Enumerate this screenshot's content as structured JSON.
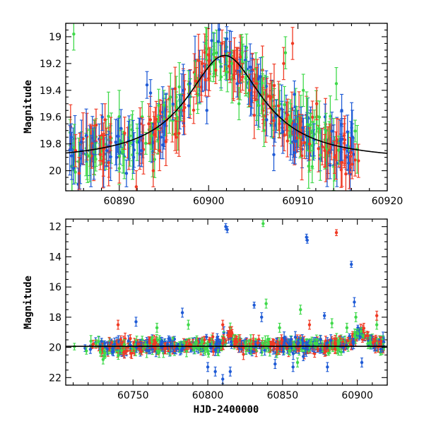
{
  "colors": {
    "blue": "#1f5bd6",
    "green": "#3fd94a",
    "red": "#f03a24",
    "curve": "#000000"
  },
  "chart_data": [
    {
      "type": "scatter",
      "title": "",
      "xlabel": "",
      "ylabel": "Magnitude",
      "xlim": [
        60884,
        60920
      ],
      "ylim": [
        20.15,
        18.9
      ],
      "y_inverted": true,
      "x_ticks": [
        60890,
        60900,
        60910,
        60920
      ],
      "y_ticks": [
        19,
        19.2,
        19.4,
        19.6,
        19.8,
        20
      ],
      "x_tick_labels": [
        "60890",
        "60900",
        "60910",
        "60920"
      ],
      "y_tick_labels": [
        "19",
        "19.2",
        "19.4",
        "19.6",
        "19.8",
        "20"
      ],
      "model_curve": {
        "peak_x": 60901.8,
        "peak_mag": 19.14,
        "baseline_mag": 19.93,
        "width_days": 5.2
      },
      "series": [
        {
          "color": "blue",
          "points": [
            [
              60884.6,
              19.75,
              0.1
            ],
            [
              60884.9,
              19.98,
              0.12
            ],
            [
              60885.4,
              20.1,
              0.12
            ],
            [
              60885.8,
              19.85,
              0.1
            ],
            [
              60887.3,
              19.78,
              0.1
            ],
            [
              60888.1,
              19.6,
              0.1
            ],
            [
              60888.6,
              19.85,
              0.12
            ],
            [
              60889.7,
              19.9,
              0.1
            ],
            [
              60890.8,
              20.02,
              0.1
            ],
            [
              60891.6,
              19.9,
              0.12
            ],
            [
              60892.5,
              19.85,
              0.12
            ],
            [
              60893.1,
              19.36,
              0.1
            ],
            [
              60893.5,
              19.42,
              0.1
            ],
            [
              60895.2,
              19.55,
              0.12
            ],
            [
              60897.9,
              19.35,
              0.1
            ],
            [
              60899.8,
              19.55,
              0.1
            ],
            [
              60901.9,
              19.11,
              0.1
            ],
            [
              60903.2,
              19.35,
              0.1
            ],
            [
              60904.8,
              19.48,
              0.1
            ],
            [
              60906.5,
              19.62,
              0.12
            ],
            [
              60907.3,
              19.88,
              0.12
            ],
            [
              60909.6,
              19.43,
              0.1
            ],
            [
              60911.8,
              19.77,
              0.12
            ],
            [
              60913.6,
              19.96,
              0.1
            ],
            [
              60914.9,
              19.55,
              0.12
            ],
            [
              60916.1,
              19.75,
              0.1
            ]
          ]
        },
        {
          "color": "green",
          "points": [
            [
              60884.9,
              18.98,
              0.12
            ],
            [
              60893.6,
              19.74,
              0.1
            ],
            [
              60898.5,
              19.28,
              0.1
            ],
            [
              60899.7,
              19.05,
              0.12
            ],
            [
              60900.6,
              19.2,
              0.1
            ],
            [
              60901.4,
              19.3,
              0.1
            ],
            [
              60902.6,
              19.2,
              0.1
            ],
            [
              60903.4,
              19.5,
              0.12
            ],
            [
              60904.5,
              19.35,
              0.1
            ],
            [
              60905.3,
              19.24,
              0.12
            ],
            [
              60906.2,
              19.7,
              0.12
            ],
            [
              60907.1,
              19.45,
              0.12
            ],
            [
              60908.6,
              19.12,
              0.12
            ],
            [
              60909.2,
              19.62,
              0.12
            ],
            [
              60910.6,
              19.4,
              0.12
            ],
            [
              60911.6,
              19.97,
              0.12
            ],
            [
              60912.4,
              19.6,
              0.12
            ],
            [
              60914.3,
              19.35,
              0.12
            ]
          ]
        },
        {
          "color": "red",
          "points": [
            [
              60885.1,
              19.85,
              0.12
            ],
            [
              60885.5,
              20.02,
              0.12
            ],
            [
              60887.4,
              19.66,
              0.12
            ],
            [
              60888.4,
              19.62,
              0.12
            ],
            [
              60889.0,
              19.75,
              0.1
            ],
            [
              60890.6,
              19.72,
              0.12
            ],
            [
              60891.9,
              20.12,
              0.12
            ],
            [
              60893.3,
              19.65,
              0.15
            ],
            [
              60893.8,
              20.0,
              0.12
            ],
            [
              60894.5,
              19.85,
              0.15
            ],
            [
              60895.3,
              19.62,
              0.15
            ],
            [
              60896.4,
              19.75,
              0.12
            ],
            [
              60897.2,
              19.55,
              0.12
            ],
            [
              60898.6,
              19.33,
              0.1
            ],
            [
              60899.3,
              19.2,
              0.1
            ],
            [
              60900.1,
              19.18,
              0.1
            ],
            [
              60900.8,
              19.25,
              0.1
            ],
            [
              60901.5,
              19.05,
              0.1
            ],
            [
              60902.3,
              19.22,
              0.1
            ],
            [
              60903.1,
              19.18,
              0.1
            ],
            [
              60903.8,
              19.3,
              0.1
            ],
            [
              60904.6,
              19.4,
              0.12
            ],
            [
              60905.4,
              19.35,
              0.12
            ],
            [
              60906.1,
              19.5,
              0.12
            ],
            [
              60907.0,
              19.45,
              0.12
            ],
            [
              60908.4,
              19.2,
              0.12
            ],
            [
              60909.4,
              19.05,
              0.12
            ],
            [
              60910.2,
              19.72,
              0.12
            ],
            [
              60911.3,
              19.8,
              0.12
            ],
            [
              60912.1,
              19.5,
              0.12
            ],
            [
              60913.0,
              19.85,
              0.12
            ],
            [
              60914.1,
              19.9,
              0.12
            ],
            [
              60915.2,
              19.84,
              0.12
            ],
            [
              60916.4,
              19.92,
              0.12
            ]
          ]
        }
      ]
    },
    {
      "type": "scatter",
      "title": "",
      "xlabel": "HJD-2400000",
      "ylabel": "Magnitude",
      "xlim": [
        60705,
        60920
      ],
      "ylim": [
        22.5,
        11.5
      ],
      "y_inverted": true,
      "x_ticks": [
        60750,
        60800,
        60850,
        60900
      ],
      "y_ticks": [
        12,
        14,
        16,
        18,
        20,
        22
      ],
      "x_tick_labels": [
        "60750",
        "60800",
        "60850",
        "60900"
      ],
      "y_tick_labels": [
        "12",
        "14",
        "16",
        "18",
        "20",
        "22"
      ],
      "model_curve": {
        "baseline_mag": 19.93,
        "start_x": 60705
      },
      "series": [
        {
          "color": "blue",
          "points": [
            [
              60752,
              18.3,
              0.3
            ],
            [
              60783,
              17.7,
              0.3
            ],
            [
              60812,
              12.0,
              0.2
            ],
            [
              60813,
              12.2,
              0.2
            ],
            [
              60831,
              17.2,
              0.2
            ],
            [
              60836,
              18.0,
              0.3
            ],
            [
              60866,
              12.7,
              0.2
            ],
            [
              60866.5,
              12.9,
              0.2
            ],
            [
              60878,
              17.9,
              0.2
            ],
            [
              60896,
              14.5,
              0.2
            ],
            [
              60898,
              17.0,
              0.3
            ],
            [
              60800,
              21.3,
              0.3
            ],
            [
              60805,
              21.6,
              0.3
            ],
            [
              60810,
              22.1,
              0.3
            ],
            [
              60815,
              21.6,
              0.3
            ],
            [
              60845,
              21.1,
              0.3
            ],
            [
              60857,
              21.3,
              0.3
            ],
            [
              60880,
              21.3,
              0.3
            ],
            [
              60903,
              21.0,
              0.3
            ]
          ]
        },
        {
          "color": "green",
          "points": [
            [
              60837,
              11.8,
              0.2
            ],
            [
              60766,
              18.7,
              0.3
            ],
            [
              60787,
              18.5,
              0.3
            ],
            [
              60839,
              17.1,
              0.3
            ],
            [
              60848,
              18.7,
              0.3
            ],
            [
              60862,
              17.5,
              0.3
            ],
            [
              60883,
              18.4,
              0.3
            ],
            [
              60893,
              18.7,
              0.3
            ],
            [
              60899,
              18.0,
              0.3
            ],
            [
              60913,
              18.5,
              0.3
            ],
            [
              60730,
              20.8,
              0.3
            ],
            [
              60860,
              21.0,
              0.3
            ]
          ]
        },
        {
          "color": "red",
          "points": [
            [
              60886,
              12.4,
              0.2
            ],
            [
              60740,
              18.5,
              0.3
            ],
            [
              60810,
              18.5,
              0.3
            ],
            [
              60868,
              18.5,
              0.3
            ],
            [
              60913,
              17.9,
              0.3
            ]
          ]
        }
      ]
    }
  ]
}
